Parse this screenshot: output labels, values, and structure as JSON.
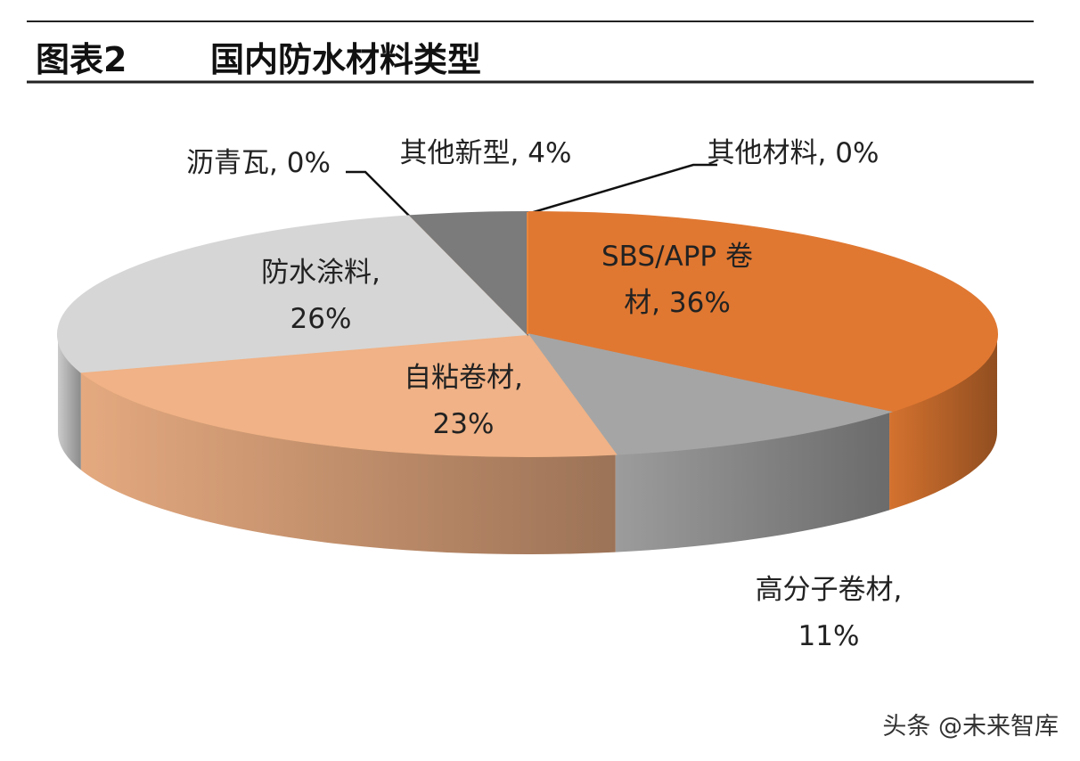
{
  "header": {
    "number": "图表2",
    "title": "国内防水材料类型"
  },
  "chart_data": {
    "type": "pie3d",
    "categories": [
      "SBS/APP 卷材,",
      "高分子卷材,",
      "自粘卷材,",
      "防水涂料,",
      "沥青瓦,",
      "其他新型,",
      "其他材料,"
    ],
    "values": [
      36,
      11,
      23,
      26,
      0,
      4,
      0
    ],
    "value_labels": [
      "36%",
      "11%",
      "23%",
      "26%",
      "0%",
      "4%",
      "0%"
    ],
    "colors": [
      "#e07832",
      "#a5a5a5",
      "#f0b286",
      "#d6d6d6",
      "#f4a468",
      "#7b7b7b",
      "#e8863f"
    ]
  },
  "watermark": "头条 @未来智库"
}
